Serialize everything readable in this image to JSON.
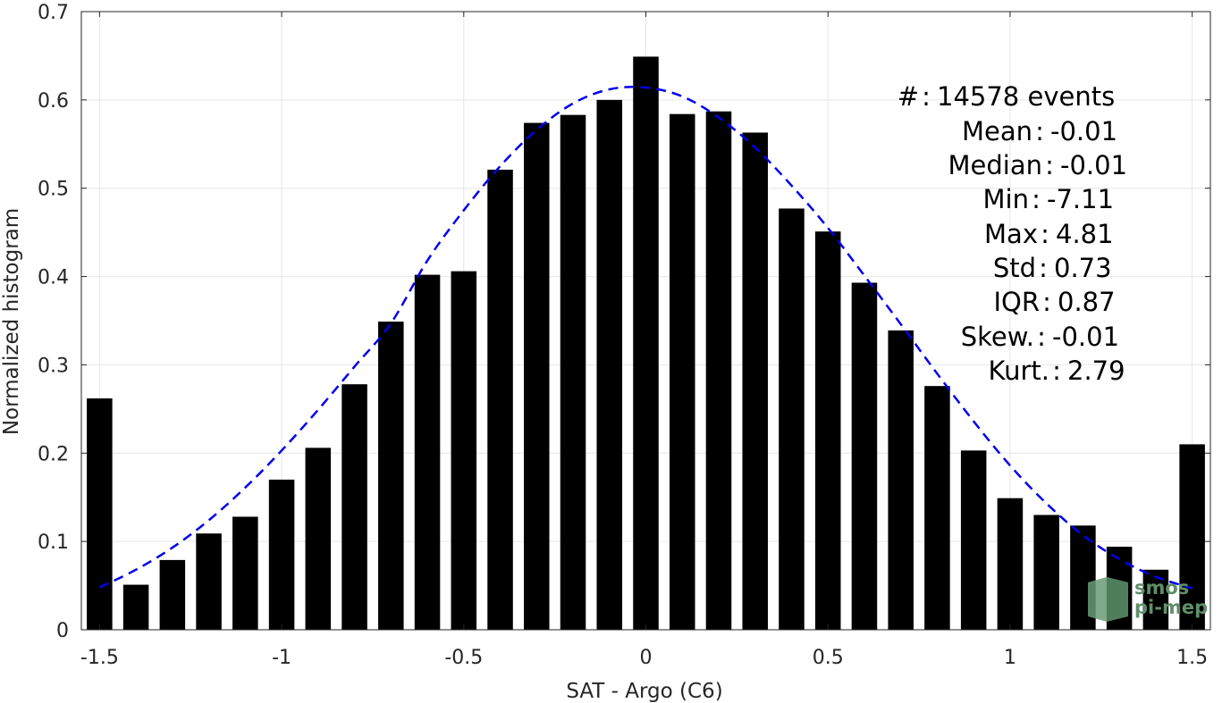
{
  "chart_data": {
    "type": "bar",
    "xlabel": "SAT - Argo (C6)",
    "ylabel": "Normalized histogram",
    "xlim": [
      -1.55,
      1.55
    ],
    "ylim": [
      0,
      0.7
    ],
    "grid": true,
    "x_ticks": [
      -1.5,
      -1,
      -0.5,
      0,
      0.5,
      1,
      1.5
    ],
    "x_tick_labels": [
      "-1.5",
      "-1",
      "-0.5",
      "0",
      "0.5",
      "1",
      "1.5"
    ],
    "y_ticks": [
      0,
      0.1,
      0.2,
      0.3,
      0.4,
      0.5,
      0.6,
      0.7
    ],
    "y_tick_labels": [
      "0",
      "0.1",
      "0.2",
      "0.3",
      "0.4",
      "0.5",
      "0.6",
      "0.7"
    ],
    "bin_width": 0.1,
    "bars": {
      "x": [
        -1.5,
        -1.4,
        -1.3,
        -1.2,
        -1.1,
        -1.0,
        -0.9,
        -0.8,
        -0.7,
        -0.6,
        -0.5,
        -0.4,
        -0.3,
        -0.2,
        -0.1,
        0.0,
        0.1,
        0.2,
        0.3,
        0.4,
        0.5,
        0.6,
        0.7,
        0.8,
        0.9,
        1.0,
        1.1,
        1.2,
        1.3,
        1.4,
        1.5
      ],
      "values": [
        0.262,
        0.051,
        0.079,
        0.109,
        0.128,
        0.17,
        0.206,
        0.278,
        0.349,
        0.402,
        0.406,
        0.521,
        0.574,
        0.583,
        0.6,
        0.649,
        0.584,
        0.587,
        0.563,
        0.477,
        0.451,
        0.393,
        0.339,
        0.276,
        0.203,
        0.149,
        0.13,
        0.118,
        0.094,
        0.068,
        0.21
      ],
      "color": "#000000"
    },
    "fit_curve": {
      "style": "dashed",
      "color": "#0000ee",
      "x": [
        -1.5,
        -1.4,
        -1.3,
        -1.2,
        -1.1,
        -1.0,
        -0.9,
        -0.8,
        -0.7,
        -0.6,
        -0.5,
        -0.4,
        -0.3,
        -0.2,
        -0.1,
        0.0,
        0.1,
        0.2,
        0.3,
        0.4,
        0.5,
        0.6,
        0.7,
        0.8,
        0.9,
        1.0,
        1.1,
        1.2,
        1.3,
        1.4,
        1.5
      ],
      "values": [
        0.048,
        0.068,
        0.093,
        0.124,
        0.161,
        0.203,
        0.249,
        0.298,
        0.347,
        0.418,
        0.475,
        0.525,
        0.566,
        0.596,
        0.612,
        0.614,
        0.604,
        0.58,
        0.546,
        0.503,
        0.455,
        0.401,
        0.346,
        0.29,
        0.236,
        0.186,
        0.143,
        0.107,
        0.08,
        0.06,
        0.047
      ]
    },
    "annotations": [
      "#  : 14578 events",
      "Mean : -0.01",
      "Median : -0.01",
      "Min : -7.11",
      "Max : 4.81",
      "Std : 0.73",
      "IQR : 0.87",
      "Skew. : -0.01",
      "Kurt. : 2.79"
    ]
  },
  "logo": {
    "line1": "smos",
    "line2": "pi-mep"
  }
}
